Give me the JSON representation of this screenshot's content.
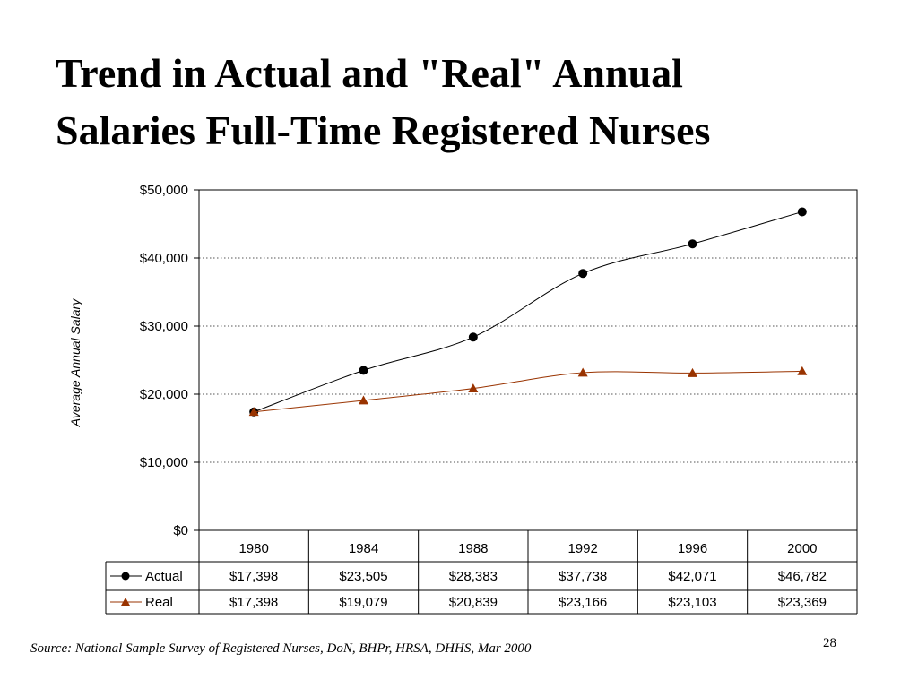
{
  "slide": {
    "title_lines": [
      "Trend in Actual and \"Real\" Annual",
      "Salaries Full-Time Registered Nurses"
    ],
    "source": "Source: National Sample Survey of Registered Nurses, DoN, BHPr,  HRSA, DHHS, Mar 2000",
    "page_number": "28"
  },
  "chart_data": {
    "type": "line",
    "ylabel": "Average Annual Salary",
    "ylim": [
      0,
      50000
    ],
    "yticks": [
      0,
      10000,
      20000,
      30000,
      40000,
      50000
    ],
    "ytick_labels": [
      "$0",
      "$10,000",
      "$20,000",
      "$30,000",
      "$40,000",
      "$50,000"
    ],
    "grid": "horizontal dotted",
    "categories": [
      "1980",
      "1984",
      "1988",
      "1992",
      "1996",
      "2000"
    ],
    "series": [
      {
        "name": "Actual",
        "marker": "circle",
        "color": "#000000",
        "values": [
          17398,
          23505,
          28383,
          37738,
          42071,
          46782
        ],
        "labels": [
          "$17,398",
          "$23,505",
          "$28,383",
          "$37,738",
          "$42,071",
          "$46,782"
        ]
      },
      {
        "name": "Real",
        "marker": "triangle",
        "color": "#993300",
        "values": [
          17398,
          19079,
          20839,
          23166,
          23103,
          23369
        ],
        "labels": [
          "$17,398",
          "$19,079",
          "$20,839",
          "$23,166",
          "$23,103",
          "$23,369"
        ]
      }
    ],
    "data_table": true
  }
}
